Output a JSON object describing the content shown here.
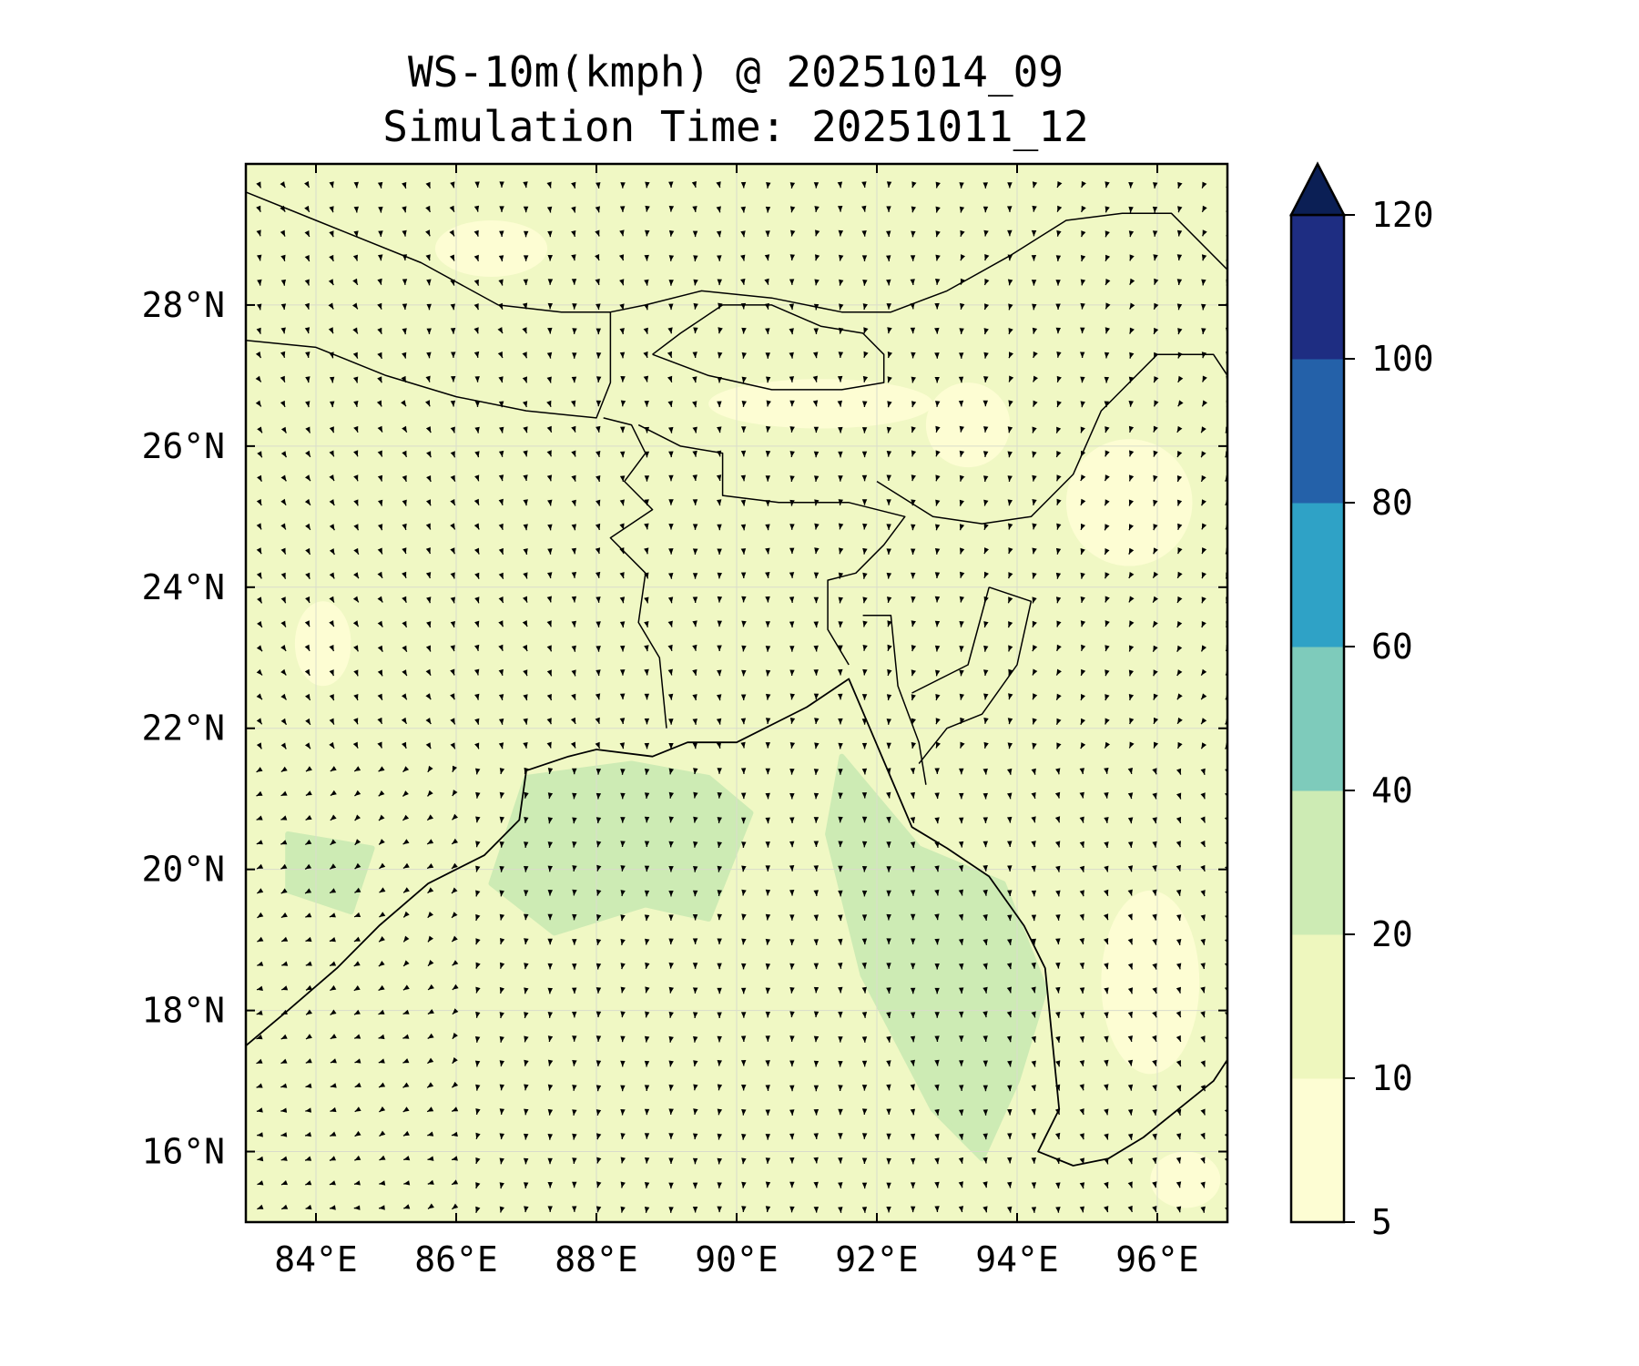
{
  "title": {
    "line1": "WS-10m(kmph) @ 20251014_09",
    "line2": "Simulation Time: 20251011_12"
  },
  "map": {
    "lon_range": [
      83.0,
      97.0
    ],
    "lat_range": [
      15.0,
      30.0
    ],
    "x_ticks": [
      {
        "value": 84,
        "label": "84°E"
      },
      {
        "value": 86,
        "label": "86°E"
      },
      {
        "value": 88,
        "label": "88°E"
      },
      {
        "value": 90,
        "label": "90°E"
      },
      {
        "value": 92,
        "label": "92°E"
      },
      {
        "value": 94,
        "label": "94°E"
      },
      {
        "value": 96,
        "label": "96°E"
      }
    ],
    "y_ticks": [
      {
        "value": 16,
        "label": "16°N"
      },
      {
        "value": 18,
        "label": "18°N"
      },
      {
        "value": 20,
        "label": "20°N"
      },
      {
        "value": 22,
        "label": "22°N"
      },
      {
        "value": 24,
        "label": "24°N"
      },
      {
        "value": 26,
        "label": "26°N"
      },
      {
        "value": 28,
        "label": "28°N"
      }
    ],
    "gridlines": true,
    "base_fill_color": "#f0f8c4",
    "wind_arrow_color": "#000000",
    "coastline_color": "#000000",
    "calm_zones": [
      {
        "lon": 91.2,
        "lat": 26.6,
        "rlon": 1.6,
        "rlat": 0.35
      },
      {
        "lon": 93.3,
        "lat": 26.3,
        "rlon": 0.6,
        "rlat": 0.6
      },
      {
        "lon": 95.6,
        "lat": 25.2,
        "rlon": 0.9,
        "rlat": 0.9
      },
      {
        "lon": 95.9,
        "lat": 18.4,
        "rlon": 0.7,
        "rlat": 1.3
      },
      {
        "lon": 86.5,
        "lat": 28.8,
        "rlon": 0.8,
        "rlat": 0.4
      },
      {
        "lon": 84.1,
        "lat": 23.2,
        "rlon": 0.4,
        "rlat": 0.6
      },
      {
        "lon": 96.4,
        "lat": 15.6,
        "rlon": 0.5,
        "rlat": 0.4
      }
    ],
    "strong_wind_zones": [
      [
        [
          87.0,
          21.3
        ],
        [
          88.5,
          21.5
        ],
        [
          89.6,
          21.3
        ],
        [
          90.2,
          20.8
        ],
        [
          89.6,
          19.3
        ],
        [
          88.7,
          19.5
        ],
        [
          87.4,
          19.1
        ],
        [
          86.5,
          19.8
        ]
      ],
      [
        [
          91.5,
          21.6
        ],
        [
          92.6,
          20.3
        ],
        [
          93.8,
          19.8
        ],
        [
          94.4,
          18.3
        ],
        [
          94.0,
          17.0
        ],
        [
          93.5,
          15.9
        ],
        [
          92.8,
          16.6
        ],
        [
          91.8,
          18.5
        ],
        [
          91.3,
          20.5
        ]
      ],
      [
        [
          83.6,
          20.5
        ],
        [
          84.8,
          20.3
        ],
        [
          84.5,
          19.4
        ],
        [
          83.6,
          19.7
        ]
      ]
    ],
    "coastline": [
      [
        [
          83.0,
          17.5
        ],
        [
          83.6,
          18.0
        ],
        [
          84.3,
          18.6
        ],
        [
          84.9,
          19.2
        ],
        [
          85.6,
          19.8
        ],
        [
          86.4,
          20.2
        ],
        [
          86.9,
          20.7
        ],
        [
          87.0,
          21.4
        ],
        [
          87.6,
          21.6
        ],
        [
          88.0,
          21.7
        ],
        [
          88.8,
          21.6
        ],
        [
          89.3,
          21.8
        ],
        [
          90.0,
          21.8
        ],
        [
          90.6,
          22.1
        ],
        [
          91.0,
          22.3
        ],
        [
          91.6,
          22.7
        ],
        [
          91.9,
          22.0
        ],
        [
          92.2,
          21.3
        ],
        [
          92.5,
          20.6
        ],
        [
          93.0,
          20.3
        ],
        [
          93.6,
          19.9
        ],
        [
          94.1,
          19.2
        ],
        [
          94.4,
          18.6
        ],
        [
          94.5,
          17.6
        ],
        [
          94.6,
          16.6
        ],
        [
          94.3,
          16.0
        ],
        [
          94.8,
          15.8
        ],
        [
          95.3,
          15.9
        ],
        [
          95.8,
          16.2
        ],
        [
          96.3,
          16.6
        ],
        [
          96.8,
          17.0
        ],
        [
          97.0,
          17.3
        ]
      ]
    ],
    "borders": [
      [
        [
          83.0,
          29.6
        ],
        [
          84.0,
          29.2
        ],
        [
          85.5,
          28.6
        ],
        [
          86.6,
          28.0
        ],
        [
          87.5,
          27.9
        ],
        [
          88.2,
          27.9
        ],
        [
          88.7,
          28.0
        ],
        [
          89.5,
          28.2
        ],
        [
          90.5,
          28.1
        ],
        [
          91.5,
          27.9
        ],
        [
          92.2,
          27.9
        ],
        [
          93.0,
          28.2
        ],
        [
          93.9,
          28.7
        ],
        [
          94.7,
          29.2
        ],
        [
          95.5,
          29.3
        ],
        [
          96.2,
          29.3
        ],
        [
          97.0,
          28.5
        ]
      ],
      [
        [
          83.0,
          27.5
        ],
        [
          84.0,
          27.4
        ],
        [
          85.0,
          27.0
        ],
        [
          86.0,
          26.7
        ],
        [
          87.0,
          26.5
        ],
        [
          88.0,
          26.4
        ],
        [
          88.2,
          26.9
        ],
        [
          88.2,
          27.9
        ]
      ],
      [
        [
          88.8,
          27.3
        ],
        [
          89.6,
          27.0
        ],
        [
          90.5,
          26.8
        ],
        [
          91.5,
          26.8
        ],
        [
          92.1,
          26.9
        ],
        [
          92.1,
          27.3
        ],
        [
          91.8,
          27.6
        ],
        [
          91.2,
          27.7
        ],
        [
          90.5,
          28.0
        ],
        [
          89.8,
          28.0
        ],
        [
          89.2,
          27.6
        ],
        [
          88.8,
          27.3
        ]
      ],
      [
        [
          88.1,
          26.4
        ],
        [
          88.5,
          26.3
        ],
        [
          88.7,
          25.9
        ],
        [
          88.4,
          25.5
        ],
        [
          88.8,
          25.1
        ],
        [
          88.2,
          24.7
        ],
        [
          88.7,
          24.2
        ],
        [
          88.6,
          23.5
        ],
        [
          88.9,
          23.0
        ],
        [
          89.0,
          22.0
        ]
      ],
      [
        [
          88.6,
          26.3
        ],
        [
          89.2,
          26.0
        ],
        [
          89.8,
          25.9
        ],
        [
          89.8,
          25.3
        ],
        [
          90.6,
          25.2
        ],
        [
          91.6,
          25.2
        ],
        [
          92.4,
          25.0
        ],
        [
          92.1,
          24.6
        ],
        [
          91.7,
          24.2
        ],
        [
          91.3,
          24.1
        ],
        [
          91.3,
          23.4
        ],
        [
          91.6,
          22.9
        ]
      ],
      [
        [
          91.8,
          23.6
        ],
        [
          92.2,
          23.6
        ],
        [
          92.3,
          22.6
        ],
        [
          92.6,
          21.8
        ],
        [
          92.7,
          21.2
        ]
      ],
      [
        [
          92.0,
          25.5
        ],
        [
          92.8,
          25.0
        ],
        [
          93.5,
          24.9
        ],
        [
          94.2,
          25.0
        ],
        [
          94.8,
          25.6
        ],
        [
          95.2,
          26.5
        ],
        [
          96.0,
          27.3
        ],
        [
          96.8,
          27.3
        ],
        [
          97.0,
          27.0
        ]
      ],
      [
        [
          93.6,
          24.0
        ],
        [
          94.2,
          23.8
        ],
        [
          94.0,
          22.9
        ],
        [
          93.5,
          22.2
        ],
        [
          93.0,
          22.0
        ],
        [
          92.6,
          21.5
        ]
      ],
      [
        [
          92.5,
          22.5
        ],
        [
          93.3,
          22.9
        ],
        [
          93.6,
          24.0
        ]
      ]
    ],
    "wind_field": {
      "lon_start": 83.2,
      "lat_start": 15.2,
      "step": 0.345,
      "arrow_scale": 0.018
    }
  },
  "colorbar": {
    "levels": [
      5,
      10,
      20,
      40,
      60,
      80,
      100,
      120
    ],
    "tick_labels": [
      "5",
      "10",
      "20",
      "40",
      "60",
      "80",
      "100",
      "120"
    ],
    "colors": [
      "#fdfdd3",
      "#eef7be",
      "#cdebb4",
      "#7ecbbb",
      "#2fa2c6",
      "#2461a9",
      "#1e2d82"
    ],
    "extend_color": "#0b1f55"
  }
}
